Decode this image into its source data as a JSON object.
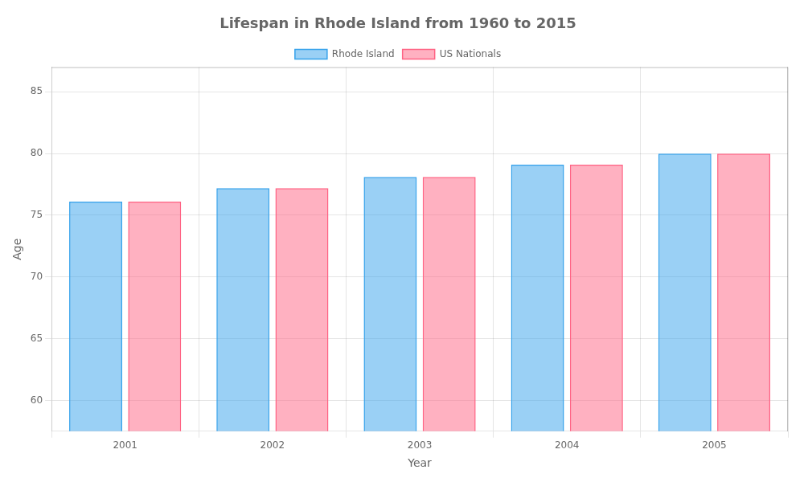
{
  "chart_data": {
    "type": "bar",
    "title": "Lifespan in Rhode Island from 1960 to 2015",
    "xlabel": "Year",
    "ylabel": "Age",
    "categories": [
      "2001",
      "2002",
      "2003",
      "2004",
      "2005"
    ],
    "series": [
      {
        "name": "Rhode Island",
        "values": [
          76.1,
          77.2,
          78.1,
          79.1,
          80.0
        ]
      },
      {
        "name": "US Nationals",
        "values": [
          76.1,
          77.2,
          78.1,
          79.1,
          80.0
        ]
      }
    ],
    "ylim": [
      57.5,
      87
    ],
    "yticks": [
      60,
      65,
      70,
      75,
      80,
      85
    ],
    "grid": true,
    "legend": "top"
  }
}
